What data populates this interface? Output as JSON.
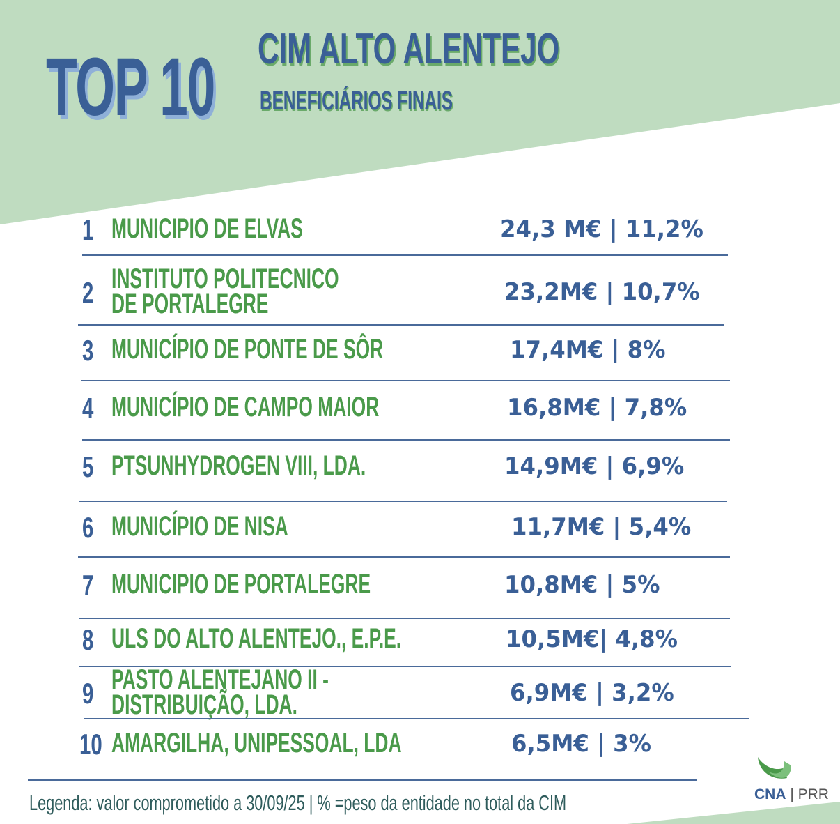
{
  "header": {
    "badge": "TOP 10",
    "title": "CIM ALTO ALENTEJO",
    "subtitle": "BENEFICIÁRIOS FINAIS"
  },
  "rows": [
    {
      "rank": "1",
      "name": "MUNICIPIO DE ELVAS",
      "value": "24,3 M€ | 11,2%"
    },
    {
      "rank": "2",
      "name": "INSTITUTO POLITECNICO DE PORTALEGRE",
      "value": "23,2M€ | 10,7%"
    },
    {
      "rank": "3",
      "name": "MUNICÍPIO DE PONTE DE SÔR",
      "value": "17,4M€ | 8%"
    },
    {
      "rank": "4",
      "name": "MUNICÍPIO DE CAMPO MAIOR",
      "value": "16,8M€ | 7,8%"
    },
    {
      "rank": "5",
      "name": "PTSUNHYDROGEN VIII, LDA.",
      "value": "14,9M€ | 6,9%"
    },
    {
      "rank": "6",
      "name": "MUNICÍPIO DE NISA",
      "value": "11,7M€ | 5,4%"
    },
    {
      "rank": "7",
      "name": "MUNICIPIO DE PORTALEGRE",
      "value": "10,8M€ | 5%"
    },
    {
      "rank": "8",
      "name": "ULS DO ALTO ALENTEJO., E.P.E.",
      "value": "10,5M€| 4,8%"
    },
    {
      "rank": "9",
      "name": "PASTO  ALENTEJANO II - DISTRIBUIÇÃO, LDA.",
      "value": "6,9M€ | 3,2%"
    },
    {
      "rank": "10",
      "name": "AMARGILHA, UNIPESSOAL, LDA",
      "value": "6,5M€ | 3%"
    }
  ],
  "legend": "Legenda: valor comprometido a 30/09/25 | % =peso da entidade no total da CIM",
  "logo": {
    "left": "CNA",
    "right": "PRR"
  },
  "colors": {
    "bg_green": "#bfdcc0",
    "blue": "#3a5f96",
    "green": "#4a9a4a"
  }
}
